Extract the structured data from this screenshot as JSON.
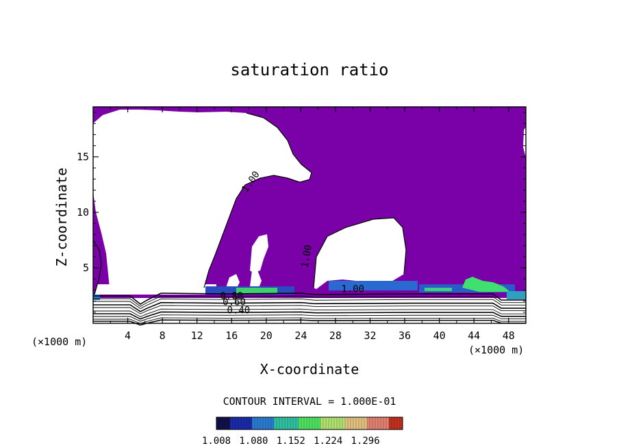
{
  "chart_data": {
    "type": "heatmap",
    "title": "saturation ratio",
    "xlabel": "X-coordinate",
    "ylabel": "Z-coordinate",
    "x_unit_note_left": "(×1000 m)",
    "x_unit_note_right": "(×1000 m)",
    "xlim": [
      0,
      50
    ],
    "ylim": [
      0,
      19.5
    ],
    "x_ticks": [
      4,
      8,
      12,
      16,
      20,
      24,
      28,
      32,
      36,
      40,
      44,
      48
    ],
    "y_ticks": [
      5,
      10,
      15
    ],
    "contour_interval_text": "CONTOUR INTERVAL = 1.000E-01",
    "contour_labels": [
      {
        "text": "1.00",
        "x": 18.5,
        "z": 12.6,
        "rotate": -55
      },
      {
        "text": "1.00",
        "x": 25.0,
        "z": 6.0,
        "rotate": -80
      },
      {
        "text": "1.00",
        "x": 30.0,
        "z": 2.8,
        "rotate": 0
      },
      {
        "text": "0.80",
        "x": 16.0,
        "z": 2.2,
        "rotate": 0
      },
      {
        "text": "0.60",
        "x": 16.3,
        "z": 1.65,
        "rotate": 0
      },
      {
        "text": "0.40",
        "x": 16.8,
        "z": 0.9,
        "rotate": 0
      }
    ],
    "colorbar": {
      "tick_labels": [
        "1.008",
        "1.080",
        "1.152",
        "1.224",
        "1.296"
      ],
      "range": [
        1.008,
        1.368
      ],
      "colors": [
        "#10104a",
        "#1a2aa8",
        "#2a7ad0",
        "#30c0a0",
        "#50e060",
        "#b0e070",
        "#e0c080",
        "#e08070",
        "#c03020"
      ]
    },
    "fill_color_primary": "#7a00a8"
  }
}
